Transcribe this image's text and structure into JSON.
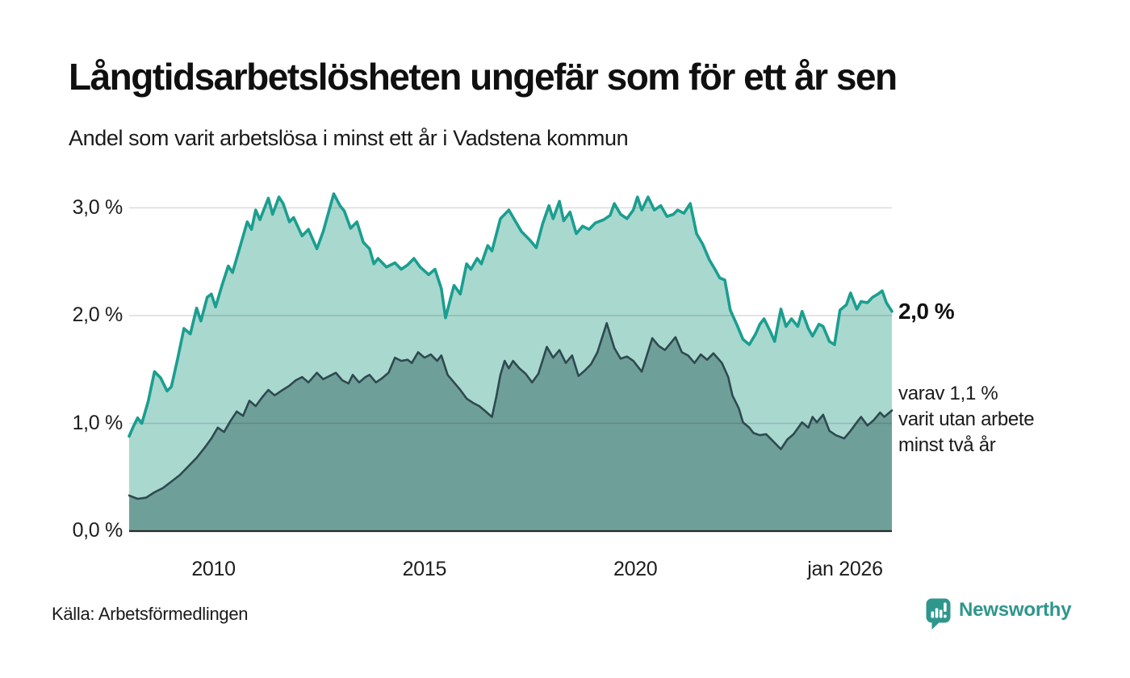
{
  "header": {
    "title": "Långtidsarbetslösheten ungefär som för ett år sen",
    "subtitle": "Andel som varit arbetslösa i minst ett år i Vadstena kommun"
  },
  "annotations": {
    "latest_total": "2,0 %",
    "secondary_line1": "varav 1,1 %",
    "secondary_line2": "varit utan arbete",
    "secondary_line3": "minst två år"
  },
  "footer": {
    "source": "Källa: Arbetsförmedlingen",
    "brand": "Newsworthy"
  },
  "colors": {
    "series_total_line": "#1b9e8f",
    "series_total_fill": "#a9d8cf",
    "series_twoyear_line": "#2e4950",
    "series_twoyear_fill": "#6f9f99",
    "gridline": "#d9d9d9",
    "axis": "#2b2b2b",
    "brand_teal": "#2e968c",
    "text": "#1a1a1a"
  },
  "chart_data": {
    "type": "area",
    "title": "Långtidsarbetslösheten ungefär som för ett år sen",
    "subtitle": "Andel som varit arbetslösa i minst ett år i Vadstena kommun",
    "unit": "%",
    "x_range": [
      2008.0,
      2026.08
    ],
    "ylim": [
      0,
      3.3
    ],
    "grid": true,
    "y_ticks": [
      {
        "label": "0,0 %",
        "value": 0.0
      },
      {
        "label": "1,0 %",
        "value": 1.0
      },
      {
        "label": "2,0 %",
        "value": 2.0
      },
      {
        "label": "3,0 %",
        "value": 3.0
      }
    ],
    "x_ticks": [
      {
        "label": "2010",
        "year": 2010
      },
      {
        "label": "2015",
        "year": 2015
      },
      {
        "label": "2020",
        "year": 2020
      },
      {
        "label": "jan 2026",
        "year": 2026.06
      }
    ],
    "series": [
      {
        "name": "Andel arbetslösa minst ett år",
        "latest_value": 2.0,
        "line_color": "#1b9e8f",
        "fill_color": "#a9d8cf",
        "stroke_width": 3.6,
        "points": [
          [
            2008.0,
            0.88
          ],
          [
            2008.1,
            0.97
          ],
          [
            2008.2,
            1.05
          ],
          [
            2008.3,
            1.0
          ],
          [
            2008.45,
            1.2
          ],
          [
            2008.6,
            1.48
          ],
          [
            2008.75,
            1.42
          ],
          [
            2008.9,
            1.3
          ],
          [
            2009.0,
            1.34
          ],
          [
            2009.15,
            1.6
          ],
          [
            2009.3,
            1.88
          ],
          [
            2009.45,
            1.83
          ],
          [
            2009.6,
            2.07
          ],
          [
            2009.7,
            1.95
          ],
          [
            2009.85,
            2.17
          ],
          [
            2009.95,
            2.2
          ],
          [
            2010.05,
            2.08
          ],
          [
            2010.2,
            2.28
          ],
          [
            2010.35,
            2.46
          ],
          [
            2010.45,
            2.4
          ],
          [
            2010.6,
            2.6
          ],
          [
            2010.8,
            2.87
          ],
          [
            2010.9,
            2.8
          ],
          [
            2011.0,
            2.98
          ],
          [
            2011.1,
            2.89
          ],
          [
            2011.3,
            3.09
          ],
          [
            2011.4,
            2.94
          ],
          [
            2011.55,
            3.1
          ],
          [
            2011.65,
            3.04
          ],
          [
            2011.8,
            2.87
          ],
          [
            2011.9,
            2.91
          ],
          [
            2012.1,
            2.74
          ],
          [
            2012.25,
            2.8
          ],
          [
            2012.45,
            2.62
          ],
          [
            2012.6,
            2.78
          ],
          [
            2012.85,
            3.13
          ],
          [
            2013.0,
            3.02
          ],
          [
            2013.1,
            2.97
          ],
          [
            2013.25,
            2.81
          ],
          [
            2013.4,
            2.87
          ],
          [
            2013.55,
            2.68
          ],
          [
            2013.7,
            2.62
          ],
          [
            2013.8,
            2.48
          ],
          [
            2013.9,
            2.53
          ],
          [
            2014.1,
            2.45
          ],
          [
            2014.3,
            2.49
          ],
          [
            2014.45,
            2.43
          ],
          [
            2014.6,
            2.47
          ],
          [
            2014.75,
            2.53
          ],
          [
            2014.9,
            2.45
          ],
          [
            2015.1,
            2.38
          ],
          [
            2015.25,
            2.43
          ],
          [
            2015.4,
            2.25
          ],
          [
            2015.5,
            1.98
          ],
          [
            2015.6,
            2.13
          ],
          [
            2015.7,
            2.28
          ],
          [
            2015.85,
            2.2
          ],
          [
            2016.0,
            2.48
          ],
          [
            2016.1,
            2.43
          ],
          [
            2016.25,
            2.53
          ],
          [
            2016.35,
            2.48
          ],
          [
            2016.5,
            2.65
          ],
          [
            2016.6,
            2.6
          ],
          [
            2016.8,
            2.9
          ],
          [
            2017.0,
            2.98
          ],
          [
            2017.15,
            2.88
          ],
          [
            2017.3,
            2.78
          ],
          [
            2017.5,
            2.7
          ],
          [
            2017.65,
            2.63
          ],
          [
            2017.8,
            2.85
          ],
          [
            2017.95,
            3.02
          ],
          [
            2018.05,
            2.9
          ],
          [
            2018.2,
            3.06
          ],
          [
            2018.3,
            2.88
          ],
          [
            2018.45,
            2.96
          ],
          [
            2018.6,
            2.76
          ],
          [
            2018.75,
            2.83
          ],
          [
            2018.9,
            2.8
          ],
          [
            2019.05,
            2.86
          ],
          [
            2019.25,
            2.89
          ],
          [
            2019.4,
            2.93
          ],
          [
            2019.5,
            3.04
          ],
          [
            2019.65,
            2.94
          ],
          [
            2019.8,
            2.9
          ],
          [
            2019.95,
            2.98
          ],
          [
            2020.05,
            3.1
          ],
          [
            2020.15,
            2.98
          ],
          [
            2020.3,
            3.1
          ],
          [
            2020.45,
            2.98
          ],
          [
            2020.6,
            3.02
          ],
          [
            2020.75,
            2.92
          ],
          [
            2020.9,
            2.94
          ],
          [
            2021.0,
            2.98
          ],
          [
            2021.15,
            2.95
          ],
          [
            2021.3,
            3.04
          ],
          [
            2021.45,
            2.76
          ],
          [
            2021.6,
            2.66
          ],
          [
            2021.75,
            2.52
          ],
          [
            2021.9,
            2.42
          ],
          [
            2022.0,
            2.35
          ],
          [
            2022.12,
            2.33
          ],
          [
            2022.25,
            2.05
          ],
          [
            2022.4,
            1.92
          ],
          [
            2022.55,
            1.78
          ],
          [
            2022.7,
            1.73
          ],
          [
            2022.85,
            1.83
          ],
          [
            2022.95,
            1.92
          ],
          [
            2023.05,
            1.97
          ],
          [
            2023.2,
            1.85
          ],
          [
            2023.3,
            1.76
          ],
          [
            2023.45,
            2.06
          ],
          [
            2023.57,
            1.9
          ],
          [
            2023.7,
            1.97
          ],
          [
            2023.85,
            1.9
          ],
          [
            2023.95,
            2.04
          ],
          [
            2024.1,
            1.88
          ],
          [
            2024.2,
            1.81
          ],
          [
            2024.35,
            1.92
          ],
          [
            2024.45,
            1.9
          ],
          [
            2024.6,
            1.76
          ],
          [
            2024.72,
            1.73
          ],
          [
            2024.85,
            2.05
          ],
          [
            2025.0,
            2.1
          ],
          [
            2025.1,
            2.21
          ],
          [
            2025.25,
            2.06
          ],
          [
            2025.35,
            2.13
          ],
          [
            2025.5,
            2.12
          ],
          [
            2025.62,
            2.17
          ],
          [
            2025.75,
            2.2
          ],
          [
            2025.85,
            2.23
          ],
          [
            2025.95,
            2.12
          ],
          [
            2026.08,
            2.04
          ]
        ]
      },
      {
        "name": "varav utan arbete minst två år",
        "latest_value": 1.1,
        "line_color": "#2e4950",
        "fill_color": "#6f9f99",
        "stroke_width": 2.6,
        "points": [
          [
            2008.0,
            0.33
          ],
          [
            2008.2,
            0.3
          ],
          [
            2008.4,
            0.31
          ],
          [
            2008.6,
            0.36
          ],
          [
            2008.8,
            0.4
          ],
          [
            2009.0,
            0.46
          ],
          [
            2009.2,
            0.52
          ],
          [
            2009.4,
            0.6
          ],
          [
            2009.6,
            0.68
          ],
          [
            2009.8,
            0.78
          ],
          [
            2009.95,
            0.86
          ],
          [
            2010.1,
            0.96
          ],
          [
            2010.25,
            0.92
          ],
          [
            2010.4,
            1.02
          ],
          [
            2010.55,
            1.11
          ],
          [
            2010.7,
            1.07
          ],
          [
            2010.85,
            1.21
          ],
          [
            2011.0,
            1.16
          ],
          [
            2011.15,
            1.24
          ],
          [
            2011.3,
            1.31
          ],
          [
            2011.45,
            1.26
          ],
          [
            2011.6,
            1.3
          ],
          [
            2011.8,
            1.35
          ],
          [
            2011.95,
            1.4
          ],
          [
            2012.1,
            1.43
          ],
          [
            2012.25,
            1.38
          ],
          [
            2012.45,
            1.47
          ],
          [
            2012.6,
            1.41
          ],
          [
            2012.75,
            1.44
          ],
          [
            2012.9,
            1.47
          ],
          [
            2013.05,
            1.4
          ],
          [
            2013.2,
            1.37
          ],
          [
            2013.3,
            1.45
          ],
          [
            2013.45,
            1.38
          ],
          [
            2013.6,
            1.43
          ],
          [
            2013.7,
            1.45
          ],
          [
            2013.85,
            1.38
          ],
          [
            2014.0,
            1.42
          ],
          [
            2014.15,
            1.47
          ],
          [
            2014.3,
            1.61
          ],
          [
            2014.45,
            1.58
          ],
          [
            2014.6,
            1.59
          ],
          [
            2014.7,
            1.56
          ],
          [
            2014.85,
            1.66
          ],
          [
            2015.0,
            1.61
          ],
          [
            2015.15,
            1.64
          ],
          [
            2015.3,
            1.58
          ],
          [
            2015.4,
            1.63
          ],
          [
            2015.55,
            1.45
          ],
          [
            2015.7,
            1.38
          ],
          [
            2015.85,
            1.31
          ],
          [
            2016.0,
            1.23
          ],
          [
            2016.15,
            1.19
          ],
          [
            2016.3,
            1.16
          ],
          [
            2016.45,
            1.11
          ],
          [
            2016.6,
            1.06
          ],
          [
            2016.7,
            1.24
          ],
          [
            2016.8,
            1.45
          ],
          [
            2016.9,
            1.58
          ],
          [
            2017.0,
            1.51
          ],
          [
            2017.1,
            1.58
          ],
          [
            2017.25,
            1.51
          ],
          [
            2017.4,
            1.46
          ],
          [
            2017.55,
            1.38
          ],
          [
            2017.7,
            1.46
          ],
          [
            2017.9,
            1.71
          ],
          [
            2018.05,
            1.61
          ],
          [
            2018.2,
            1.68
          ],
          [
            2018.35,
            1.56
          ],
          [
            2018.5,
            1.63
          ],
          [
            2018.65,
            1.44
          ],
          [
            2018.8,
            1.49
          ],
          [
            2018.95,
            1.55
          ],
          [
            2019.1,
            1.66
          ],
          [
            2019.32,
            1.93
          ],
          [
            2019.5,
            1.7
          ],
          [
            2019.65,
            1.6
          ],
          [
            2019.8,
            1.62
          ],
          [
            2019.95,
            1.58
          ],
          [
            2020.15,
            1.48
          ],
          [
            2020.4,
            1.79
          ],
          [
            2020.55,
            1.72
          ],
          [
            2020.7,
            1.68
          ],
          [
            2020.95,
            1.8
          ],
          [
            2021.1,
            1.66
          ],
          [
            2021.25,
            1.63
          ],
          [
            2021.4,
            1.56
          ],
          [
            2021.55,
            1.64
          ],
          [
            2021.7,
            1.59
          ],
          [
            2021.85,
            1.65
          ],
          [
            2022.05,
            1.56
          ],
          [
            2022.2,
            1.43
          ],
          [
            2022.3,
            1.26
          ],
          [
            2022.45,
            1.14
          ],
          [
            2022.55,
            1.01
          ],
          [
            2022.7,
            0.96
          ],
          [
            2022.8,
            0.91
          ],
          [
            2022.95,
            0.89
          ],
          [
            2023.1,
            0.9
          ],
          [
            2023.25,
            0.84
          ],
          [
            2023.45,
            0.76
          ],
          [
            2023.6,
            0.85
          ],
          [
            2023.75,
            0.9
          ],
          [
            2023.95,
            1.01
          ],
          [
            2024.1,
            0.96
          ],
          [
            2024.2,
            1.06
          ],
          [
            2024.3,
            1.01
          ],
          [
            2024.45,
            1.08
          ],
          [
            2024.6,
            0.93
          ],
          [
            2024.75,
            0.89
          ],
          [
            2024.95,
            0.86
          ],
          [
            2025.1,
            0.93
          ],
          [
            2025.25,
            1.01
          ],
          [
            2025.35,
            1.06
          ],
          [
            2025.5,
            0.98
          ],
          [
            2025.65,
            1.03
          ],
          [
            2025.8,
            1.1
          ],
          [
            2025.9,
            1.06
          ],
          [
            2026.08,
            1.12
          ]
        ]
      }
    ]
  }
}
